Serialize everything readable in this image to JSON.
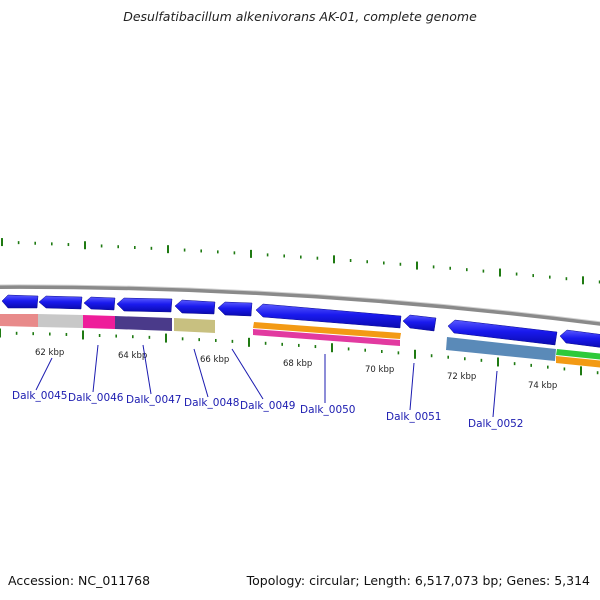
{
  "title": "Desulfatibacillum alkenivorans AK-01, complete genome",
  "footer": {
    "accession": "Accession: NC_011768",
    "summary": "Topology: circular; Length: 6,517,073 bp; Genes: 5,314"
  },
  "kbp_labels": [
    "62 kbp",
    "64 kbp",
    "66 kbp",
    "68 kbp",
    "70 kbp",
    "72 kbp",
    "74 kbp"
  ],
  "gene_labels": [
    "Dalk_0045",
    "Dalk_0046",
    "Dalk_0047",
    "Dalk_0048",
    "Dalk_0049",
    "Dalk_0050",
    "Dalk_0051",
    "Dalk_0052"
  ],
  "colors": {
    "cds": "#1a1aee",
    "backbone": "#8a8a8a",
    "tick": "#1f7a12",
    "label": "#1b1bb0",
    "feature_colors": [
      "#e88a8a",
      "#c8c8c8",
      "#ee1d9a",
      "#4a3a8a",
      "#c8c080",
      "#f39a14",
      "#e23aa0",
      "#5a8ab8",
      "#2ec93a"
    ]
  }
}
